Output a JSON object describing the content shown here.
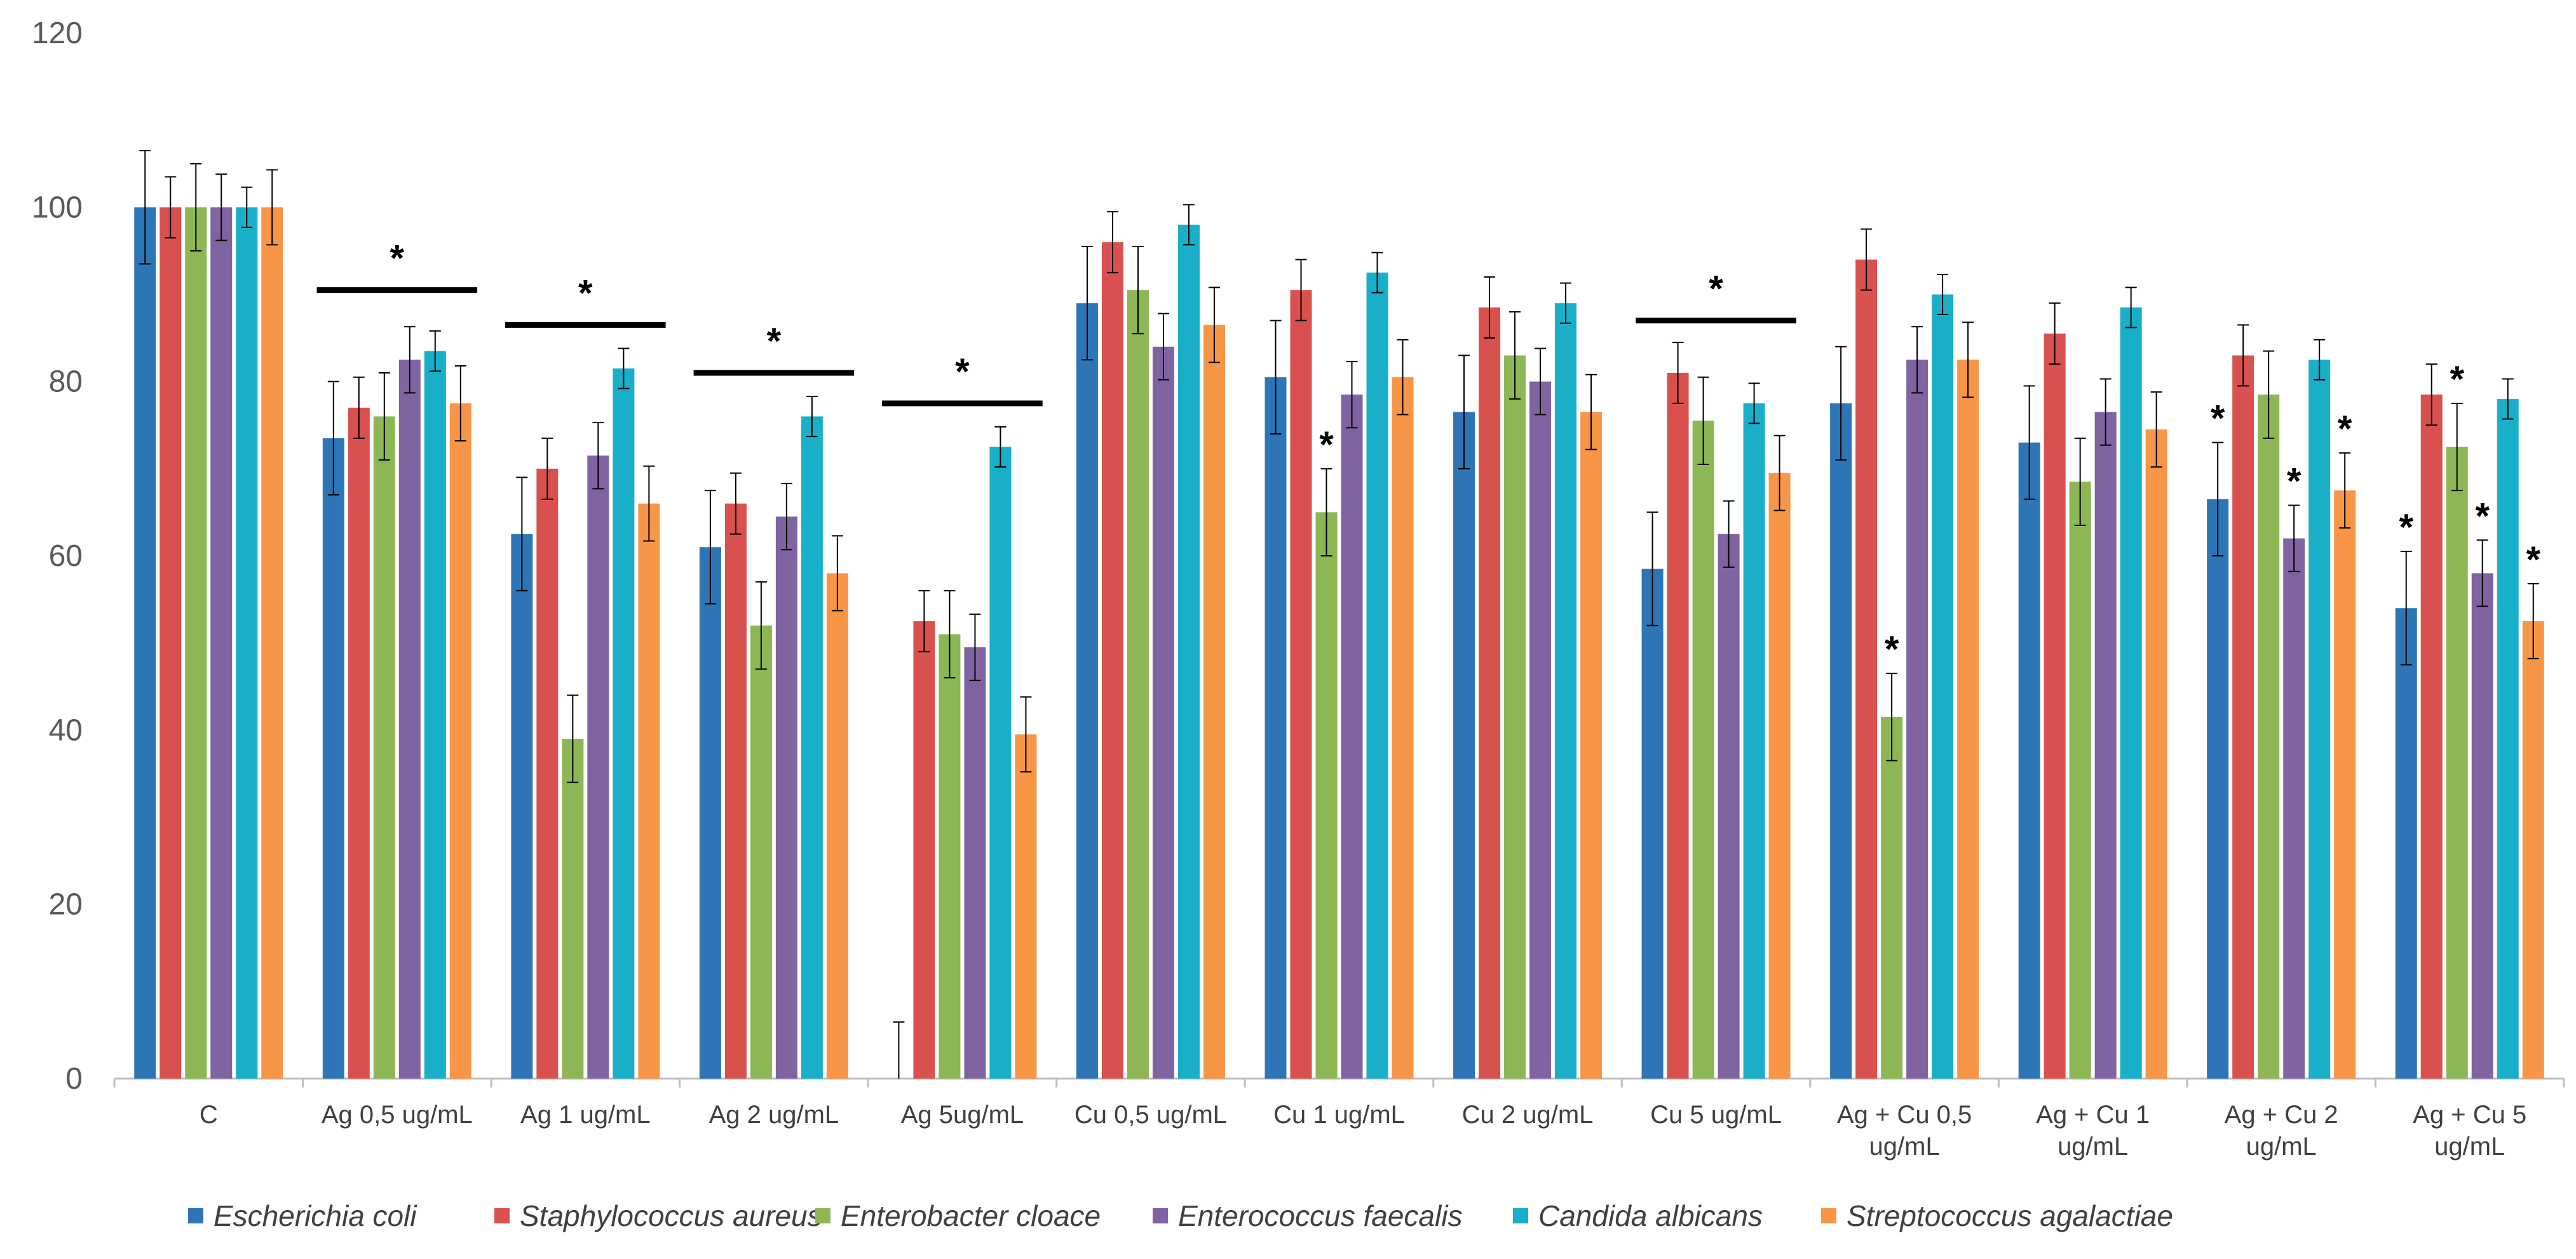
{
  "chart_data": {
    "type": "bar",
    "title": "",
    "xlabel": "",
    "ylabel": "",
    "ylim": [
      0,
      120
    ],
    "yticks": [
      0,
      20,
      40,
      60,
      80,
      100,
      120
    ],
    "grid": false,
    "legend_position": "bottom",
    "categories": [
      [
        "C"
      ],
      [
        "Ag 0,5 ug/mL"
      ],
      [
        "Ag 1 ug/mL"
      ],
      [
        "Ag 2 ug/mL"
      ],
      [
        "Ag 5ug/mL"
      ],
      [
        "Cu 0,5 ug/mL"
      ],
      [
        "Cu 1 ug/mL"
      ],
      [
        "Cu 2 ug/mL"
      ],
      [
        "Cu 5 ug/mL"
      ],
      [
        "Ag + Cu 0,5",
        "ug/mL"
      ],
      [
        "Ag + Cu 1",
        "ug/mL"
      ],
      [
        "Ag + Cu 2",
        "ug/mL"
      ],
      [
        "Ag + Cu 5",
        "ug/mL"
      ]
    ],
    "series": [
      {
        "name": "Escherichia coli",
        "color": "#2E75B6",
        "values": [
          100,
          73.5,
          62.5,
          61,
          0,
          89,
          80.5,
          76.5,
          58.5,
          77.5,
          73,
          66.5,
          54
        ],
        "errors": [
          6.5,
          6.5,
          6.5,
          6.5,
          6.5,
          6.5,
          6.5,
          6.5,
          6.5,
          6.5,
          6.5,
          6.5,
          6.5
        ]
      },
      {
        "name": "Staphylococcus aureus",
        "color": "#D9514E",
        "values": [
          100,
          77,
          70,
          66,
          52.5,
          96,
          90.5,
          88.5,
          81,
          94,
          85.5,
          83,
          78.5
        ],
        "errors": [
          3.5,
          3.5,
          3.5,
          3.5,
          3.5,
          3.5,
          3.5,
          3.5,
          3.5,
          3.5,
          3.5,
          3.5,
          3.5
        ]
      },
      {
        "name": "Enterobacter cloace",
        "color": "#8DB654",
        "values": [
          100,
          76,
          39,
          52,
          51,
          90.5,
          65,
          83,
          75.5,
          41.5,
          68.5,
          78.5,
          72.5
        ],
        "errors": [
          5,
          5,
          5,
          5,
          5,
          5,
          5,
          5,
          5,
          5,
          5,
          5,
          5
        ]
      },
      {
        "name": "Enterococcus faecalis",
        "color": "#8064A2",
        "values": [
          100,
          82.5,
          71.5,
          64.5,
          49.5,
          84,
          78.5,
          80,
          62.5,
          82.5,
          76.5,
          62,
          58
        ],
        "errors": [
          3.8,
          3.8,
          3.8,
          3.8,
          3.8,
          3.8,
          3.8,
          3.8,
          3.8,
          3.8,
          3.8,
          3.8,
          3.8
        ]
      },
      {
        "name": "Candida albicans",
        "color": "#1AAFC8",
        "values": [
          100,
          83.5,
          81.5,
          76,
          72.5,
          98,
          92.5,
          89,
          77.5,
          90,
          88.5,
          82.5,
          78
        ],
        "errors": [
          2.3,
          2.3,
          2.3,
          2.3,
          2.3,
          2.3,
          2.3,
          2.3,
          2.3,
          2.3,
          2.3,
          2.3,
          2.3
        ]
      },
      {
        "name": "Streptococcus agalactiae",
        "color": "#F79646",
        "values": [
          100,
          77.5,
          66,
          58,
          39.5,
          86.5,
          80.5,
          76.5,
          69.5,
          82.5,
          74.5,
          67.5,
          52.5
        ],
        "errors": [
          4.3,
          4.3,
          4.3,
          4.3,
          4.3,
          4.3,
          4.3,
          4.3,
          4.3,
          4.3,
          4.3,
          4.3,
          4.3
        ]
      }
    ],
    "significance_lines": [
      {
        "category": 1,
        "y": 90.5,
        "label": "*"
      },
      {
        "category": 2,
        "y": 86.5,
        "label": "*"
      },
      {
        "category": 3,
        "y": 81,
        "label": "*"
      },
      {
        "category": 4,
        "y": 77.5,
        "label": "*"
      },
      {
        "category": 8,
        "y": 87,
        "label": "*"
      }
    ],
    "significance_markers": [
      {
        "category": 6,
        "series": 2,
        "label": "*"
      },
      {
        "category": 9,
        "series": 2,
        "label": "*"
      },
      {
        "category": 11,
        "series": 0,
        "label": "*"
      },
      {
        "category": 11,
        "series": 3,
        "label": "*"
      },
      {
        "category": 11,
        "series": 5,
        "label": "*"
      },
      {
        "category": 12,
        "series": 0,
        "label": "*"
      },
      {
        "category": 12,
        "series": 2,
        "label": "*"
      },
      {
        "category": 12,
        "series": 3,
        "label": "*"
      },
      {
        "category": 12,
        "series": 5,
        "label": "*"
      }
    ]
  }
}
